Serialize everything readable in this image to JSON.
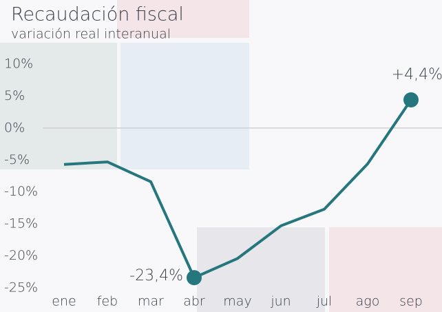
{
  "chart_data": {
    "type": "line",
    "title": "Recaudación fiscal",
    "subtitle": "variación real interanual",
    "categories": [
      "ene",
      "feb",
      "mar",
      "abr",
      "may",
      "jun",
      "jul",
      "ago",
      "sep"
    ],
    "series": [
      {
        "name": "Recaudación fiscal",
        "color": "#25777d",
        "values": [
          -5.7,
          -5.3,
          -8.4,
          -23.4,
          -20.4,
          -15.3,
          -12.7,
          -5.6,
          4.4
        ],
        "value_labels": [
          null,
          null,
          null,
          "-23,4%",
          null,
          null,
          null,
          null,
          "+4,4%"
        ]
      }
    ],
    "ylim": [
      -25,
      10
    ],
    "yticks": [
      {
        "value": 10,
        "label": "10%"
      },
      {
        "value": 5,
        "label": "5%"
      },
      {
        "value": 0,
        "label": "0%"
      },
      {
        "value": -5,
        "label": "-5%"
      },
      {
        "value": -10,
        "label": "-10%"
      },
      {
        "value": -15,
        "label": "-15%"
      },
      {
        "value": -20,
        "label": "-20%"
      },
      {
        "value": -25,
        "label": "-25%"
      }
    ]
  }
}
